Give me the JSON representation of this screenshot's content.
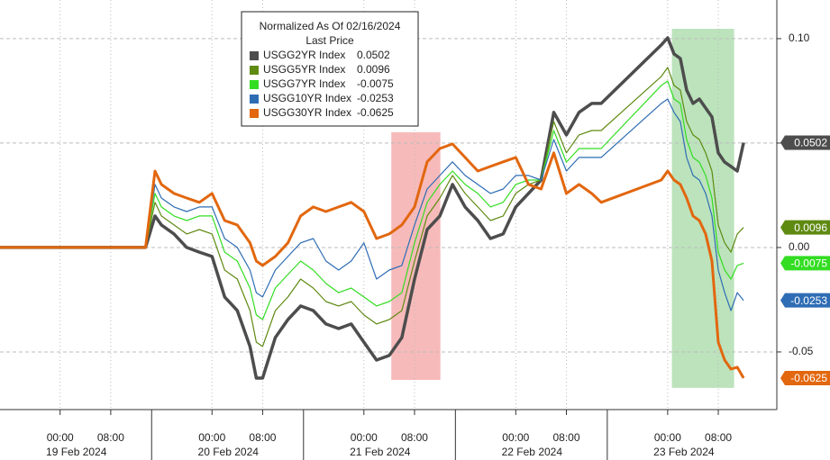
{
  "chart_data": {
    "type": "line",
    "legend_title": "Normalized As Of 02/16/2024",
    "legend_subtitle": "Last Price",
    "x": [
      "2024-02-18 14:30",
      "2024-02-19 13:30",
      "2024-02-19 15:00",
      "2024-02-19 16:00",
      "2024-02-19 18:00",
      "2024-02-19 20:00",
      "2024-02-19 22:00",
      "2024-02-20 00:00",
      "2024-02-20 02:00",
      "2024-02-20 04:00",
      "2024-02-20 06:00",
      "2024-02-20 07:00",
      "2024-02-20 08:00",
      "2024-02-20 10:00",
      "2024-02-20 12:00",
      "2024-02-20 14:00",
      "2024-02-20 16:00",
      "2024-02-20 18:00",
      "2024-02-20 20:00",
      "2024-02-20 22:00",
      "2024-02-21 00:00",
      "2024-02-21 02:00",
      "2024-02-21 04:00",
      "2024-02-21 06:00",
      "2024-02-21 08:00",
      "2024-02-21 10:00",
      "2024-02-21 12:00",
      "2024-02-21 14:00",
      "2024-02-21 16:00",
      "2024-02-21 18:00",
      "2024-02-21 20:00",
      "2024-02-21 22:00",
      "2024-02-22 00:00",
      "2024-02-22 02:00",
      "2024-02-22 04:00",
      "2024-02-22 06:00",
      "2024-02-22 08:00",
      "2024-02-22 10:00",
      "2024-02-22 12:00",
      "2024-02-22 13:30",
      "2024-02-22 23:00",
      "2024-02-23 00:00",
      "2024-02-23 01:00",
      "2024-02-23 02:00",
      "2024-02-23 03:00",
      "2024-02-23 04:00",
      "2024-02-23 05:00",
      "2024-02-23 06:00",
      "2024-02-23 07:00",
      "2024-02-23 08:00",
      "2024-02-23 09:00",
      "2024-02-23 10:00",
      "2024-02-23 11:00",
      "2024-02-23 12:00"
    ],
    "series": [
      {
        "name": "USGG2YR Index",
        "color": "#4d4d4d",
        "width": 3.5,
        "values": [
          0,
          0,
          0.0151,
          0.0108,
          0.0065,
          0,
          -0.0022,
          -0.0043,
          -0.0237,
          -0.0302,
          -0.0474,
          -0.0625,
          -0.0625,
          -0.0431,
          -0.0345,
          -0.028,
          -0.0302,
          -0.0366,
          -0.0388,
          -0.0366,
          -0.0453,
          -0.0539,
          -0.0517,
          -0.0431,
          -0.0151,
          0.0086,
          0.0151,
          0.0302,
          0.0194,
          0.0129,
          0.0043,
          0.0065,
          0.0194,
          0.0259,
          0.0323,
          0.0647,
          0.0539,
          0.0647,
          0.069,
          0.069,
          0.097,
          0.1004,
          0.0927,
          0.0905,
          0.0754,
          0.069,
          0.0711,
          0.0668,
          0.0625,
          0.0453,
          0.0409,
          0.0388,
          0.0366,
          0.0502
        ]
      },
      {
        "name": "USGG5YR Index",
        "color": "#5f8a12",
        "width": 1.2,
        "values": [
          0,
          0,
          0.0216,
          0.0151,
          0.0108,
          0.0065,
          0.0086,
          0.0065,
          -0.0108,
          -0.0151,
          -0.0302,
          -0.0453,
          -0.0474,
          -0.0302,
          -0.0237,
          -0.0151,
          -0.0194,
          -0.0259,
          -0.028,
          -0.0259,
          -0.0323,
          -0.0366,
          -0.0345,
          -0.0302,
          -0.0065,
          0.0151,
          0.0237,
          0.0345,
          0.0259,
          0.0194,
          0.0129,
          0.0151,
          0.0259,
          0.0302,
          0.0323,
          0.0603,
          0.0453,
          0.0539,
          0.056,
          0.056,
          0.0819,
          0.0862,
          0.0776,
          0.0754,
          0.0603,
          0.0539,
          0.0517,
          0.0453,
          0.0366,
          0.0108,
          0.0022,
          -0.0022,
          0.0065,
          0.0096
        ]
      },
      {
        "name": "USGG7YR Index",
        "color": "#33dd22",
        "width": 1.2,
        "values": [
          0,
          0,
          0.0259,
          0.0194,
          0.0151,
          0.0129,
          0.0151,
          0.0151,
          -0.0022,
          -0.0065,
          -0.0194,
          -0.0323,
          -0.0345,
          -0.0194,
          -0.0129,
          -0.0065,
          -0.0108,
          -0.0172,
          -0.0216,
          -0.0194,
          -0.0237,
          -0.028,
          -0.0259,
          -0.0216,
          0.0022,
          0.0216,
          0.0302,
          0.0366,
          0.0302,
          0.0259,
          0.0194,
          0.0216,
          0.0302,
          0.0323,
          0.0323,
          0.056,
          0.0409,
          0.0474,
          0.0474,
          0.0474,
          0.0776,
          0.0797,
          0.0711,
          0.069,
          0.0517,
          0.0431,
          0.0409,
          0.0345,
          0.0237,
          -0.0022,
          -0.0108,
          -0.0151,
          -0.0086,
          -0.0075
        ]
      },
      {
        "name": "USGG10YR Index",
        "color": "#2e6db4",
        "width": 1.2,
        "values": [
          0,
          0,
          0.0302,
          0.0237,
          0.0194,
          0.0172,
          0.0194,
          0.0194,
          0.0043,
          0,
          -0.0108,
          -0.0216,
          -0.0237,
          -0.0108,
          -0.0043,
          0.0022,
          0.0043,
          -0.0065,
          -0.0108,
          -0.0065,
          0.0022,
          -0.0151,
          -0.0108,
          -0.0086,
          0.0108,
          0.028,
          0.0345,
          0.041,
          0.0345,
          0.0302,
          0.0259,
          0.028,
          0.0345,
          0.0345,
          0.0323,
          0.0517,
          0.0366,
          0.0431,
          0.0431,
          0.0431,
          0.069,
          0.0711,
          0.0647,
          0.0603,
          0.0431,
          0.0345,
          0.0323,
          0.0259,
          0.0151,
          -0.0108,
          -0.0216,
          -0.0302,
          -0.0216,
          -0.0253
        ]
      },
      {
        "name": "USGG30YR Index",
        "color": "#e2670e",
        "width": 3,
        "values": [
          0,
          0,
          0.0366,
          0.0302,
          0.0259,
          0.0237,
          0.0216,
          0.0259,
          0.0129,
          0.0108,
          0.0022,
          -0.0065,
          -0.0086,
          -0.0043,
          0.0022,
          0.0151,
          0.0194,
          0.0172,
          0.0194,
          0.0216,
          0.0172,
          0.0043,
          0.0065,
          0.0108,
          0.0194,
          0.041,
          0.0474,
          0.0496,
          0.0431,
          0.0366,
          0.0388,
          0.041,
          0.0431,
          0.0302,
          0.028,
          0.0453,
          0.0259,
          0.0302,
          0.0259,
          0.0216,
          0.0323,
          0.0366,
          0.0323,
          0.0302,
          0.0237,
          0.0151,
          0.0129,
          0.0065,
          -0.0065,
          -0.0453,
          -0.0539,
          -0.0582,
          -0.0573,
          -0.0625
        ]
      }
    ],
    "xlim": [
      "2024-02-18 14:30",
      "2024-02-23 17:15"
    ],
    "xticks": [
      {
        "value": "2024-02-19 00:00",
        "label": "00:00"
      },
      {
        "value": "2024-02-19 08:00",
        "label": "08:00"
      },
      {
        "value": "2024-02-20 00:00",
        "label": "00:00"
      },
      {
        "value": "2024-02-20 08:00",
        "label": "08:00"
      },
      {
        "value": "2024-02-21 00:00",
        "label": "00:00"
      },
      {
        "value": "2024-02-21 08:00",
        "label": "08:00"
      },
      {
        "value": "2024-02-22 00:00",
        "label": "00:00"
      },
      {
        "value": "2024-02-22 08:00",
        "label": "08:00"
      },
      {
        "value": "2024-02-23 00:00",
        "label": "00:00"
      },
      {
        "value": "2024-02-23 08:00",
        "label": "08:00"
      }
    ],
    "xdates": [
      {
        "value": "2024-02-19 00:00",
        "label": "19 Feb 2024"
      },
      {
        "value": "2024-02-20 00:00",
        "label": "20 Feb 2024"
      },
      {
        "value": "2024-02-21 00:00",
        "label": "21 Feb 2024"
      },
      {
        "value": "2024-02-22 00:00",
        "label": "22 Feb 2024"
      },
      {
        "value": "2024-02-23 00:00",
        "label": "23 Feb 2024"
      }
    ],
    "ylim": [
      -0.0776,
      0.1185
    ],
    "yticks": [
      {
        "value": 0.1,
        "label": "0.10"
      },
      {
        "value": 0.05,
        "label": null
      },
      {
        "value": 0,
        "label": "0.00"
      },
      -0.05
    ],
    "grid": true,
    "highlights": [
      {
        "x": [
          "2024-02-21 04:20",
          "2024-02-21 12:05"
        ],
        "y": [
          0.0552,
          -0.0634
        ],
        "color": "#f4a3a3"
      },
      {
        "x": [
          "2024-02-23 00:40",
          "2024-02-23 10:30"
        ],
        "y": [
          0.1047,
          -0.0672
        ],
        "color": "#a6d9a6"
      }
    ]
  }
}
